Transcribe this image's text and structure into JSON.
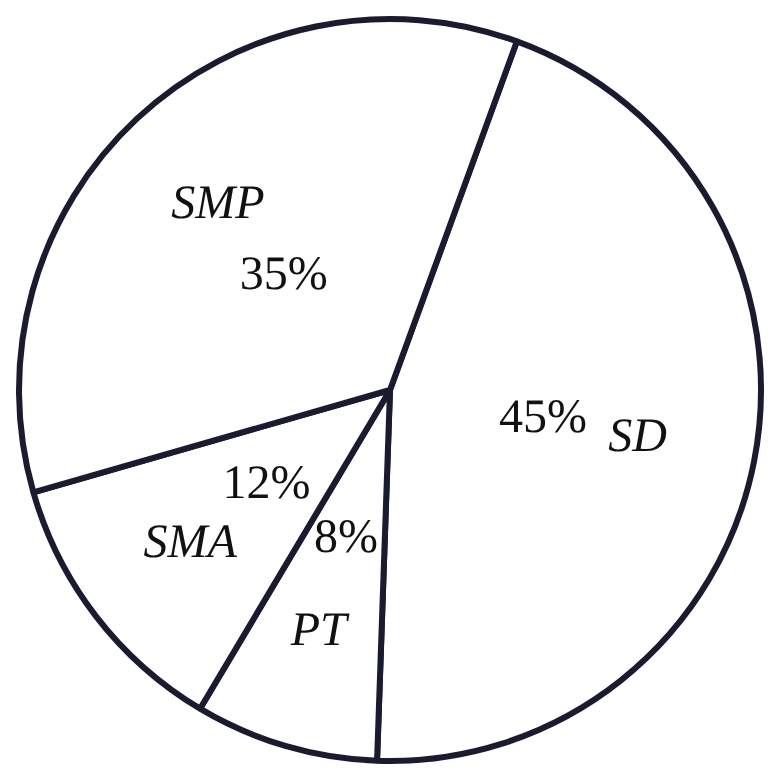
{
  "chart_data": {
    "type": "pie",
    "categories": [
      "SD",
      "PT",
      "SMA",
      "SMP"
    ],
    "values": [
      45,
      8,
      12,
      35
    ],
    "value_labels": [
      "45%",
      "8%",
      "12%",
      "35%"
    ],
    "colors": [
      "#ffffff",
      "#ffffff",
      "#ffffff",
      "#ffffff"
    ],
    "legend": false
  }
}
